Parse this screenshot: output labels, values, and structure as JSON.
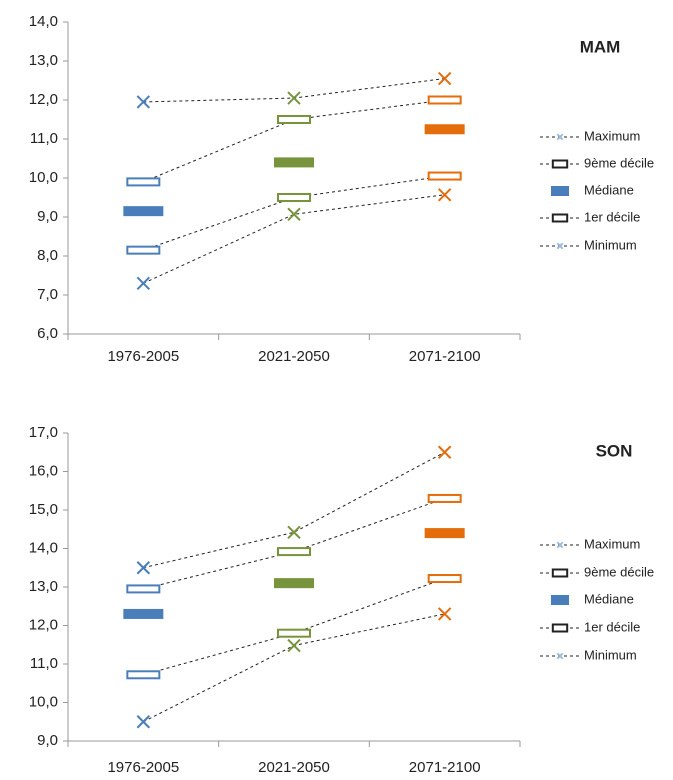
{
  "chart_data": [
    {
      "type": "range",
      "title": "MAM",
      "categories": [
        "1976-2005",
        "2021-2050",
        "2071-2100"
      ],
      "point_colors": [
        "#4a7ebb",
        "#77933c",
        "#e46c0a"
      ],
      "ylim": [
        6,
        14
      ],
      "yticks": [
        {
          "value": 6,
          "label": "6,0"
        },
        {
          "value": 7,
          "label": "7,0"
        },
        {
          "value": 8,
          "label": "8,0"
        },
        {
          "value": 9,
          "label": "9,0"
        },
        {
          "value": 10,
          "label": "10,0"
        },
        {
          "value": 11,
          "label": "11,0"
        },
        {
          "value": 12,
          "label": "12,0"
        },
        {
          "value": 13,
          "label": "13,0"
        },
        {
          "value": 14,
          "label": "14,0"
        }
      ],
      "series": [
        {
          "name": "Maximum",
          "marker": "cross",
          "connected": true,
          "values": [
            11.95,
            12.05,
            12.55
          ]
        },
        {
          "name": "9ème décile",
          "marker": "hollow",
          "connected": true,
          "values": [
            9.9,
            11.5,
            12.0
          ]
        },
        {
          "name": "Médiane",
          "marker": "filled",
          "connected": false,
          "values": [
            9.15,
            10.4,
            11.25
          ]
        },
        {
          "name": "1er décile",
          "marker": "hollow",
          "connected": true,
          "values": [
            8.15,
            9.5,
            10.05
          ]
        },
        {
          "name": "Minimum",
          "marker": "cross",
          "connected": true,
          "values": [
            7.3,
            9.07,
            9.57
          ]
        }
      ]
    },
    {
      "type": "range",
      "title": "SON",
      "categories": [
        "1976-2005",
        "2021-2050",
        "2071-2100"
      ],
      "point_colors": [
        "#4a7ebb",
        "#77933c",
        "#e46c0a"
      ],
      "ylim": [
        9,
        17
      ],
      "yticks": [
        {
          "value": 9,
          "label": "9,0"
        },
        {
          "value": 10,
          "label": "10,0"
        },
        {
          "value": 11,
          "label": "11,0"
        },
        {
          "value": 12,
          "label": "12,0"
        },
        {
          "value": 13,
          "label": "13,0"
        },
        {
          "value": 14,
          "label": "14,0"
        },
        {
          "value": 15,
          "label": "15,0"
        },
        {
          "value": 16,
          "label": "16,0"
        },
        {
          "value": 17,
          "label": "17,0"
        }
      ],
      "series": [
        {
          "name": "Maximum",
          "marker": "cross",
          "connected": true,
          "values": [
            13.5,
            14.42,
            16.5
          ]
        },
        {
          "name": "9ème décile",
          "marker": "hollow",
          "connected": true,
          "values": [
            12.95,
            13.92,
            15.3
          ]
        },
        {
          "name": "Médiane",
          "marker": "filled",
          "connected": false,
          "values": [
            12.3,
            13.1,
            14.4
          ]
        },
        {
          "name": "1er décile",
          "marker": "hollow",
          "connected": true,
          "values": [
            10.72,
            11.8,
            13.22
          ]
        },
        {
          "name": "Minimum",
          "marker": "cross",
          "connected": true,
          "values": [
            9.5,
            11.48,
            12.3
          ]
        }
      ]
    }
  ]
}
